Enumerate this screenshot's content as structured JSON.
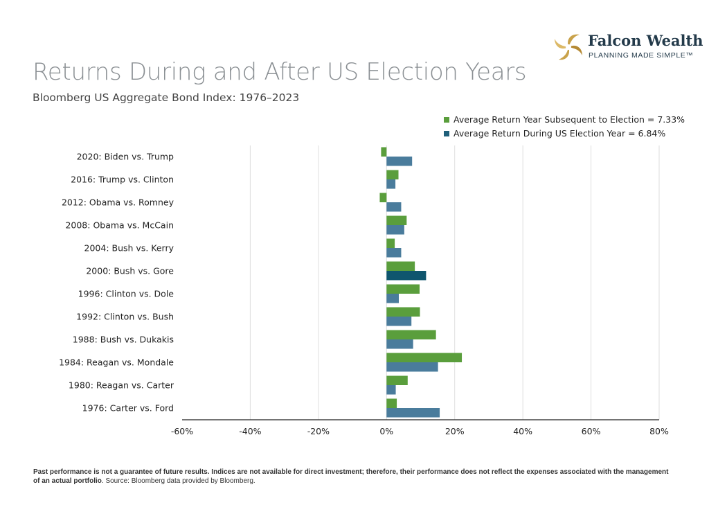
{
  "header": {
    "title": "Returns During and After US Election Years",
    "subtitle": "Bloomberg US Aggregate Bond Index: 1976–2023"
  },
  "logo": {
    "name": "Falcon Wealth",
    "tagline": "PLANNING MADE SIMPLE™",
    "icon": "golden-swirl-icon"
  },
  "footnote": {
    "bold": "Past performance is not a guarantee of future results. Indices are not available for direct investment; therefore, their performance does not reflect the expenses associated with the management of an actual portfolio",
    "normal": ". Source: Bloomberg data provided by Bloomberg."
  },
  "chart_data": {
    "type": "bar",
    "orientation": "horizontal",
    "categories": [
      "2020: Biden vs. Trump",
      "2016: Trump vs. Clinton",
      "2012: Obama vs. Romney",
      "2008: Obama vs. McCain",
      "2004: Bush vs. Kerry",
      "2000: Bush vs. Gore",
      "1996: Clinton vs. Dole",
      "1992: Clinton vs. Bush",
      "1988: Bush vs. Dukakis",
      "1984: Reagan vs. Mondale",
      "1980: Reagan vs. Carter",
      "1976: Carter vs. Ford"
    ],
    "series": [
      {
        "name": "Average Return Year Subsequent to Election = 7.33%",
        "color": "#5a9e3c",
        "values": [
          -1.6,
          3.5,
          -2.0,
          5.9,
          2.4,
          8.3,
          9.7,
          9.8,
          14.5,
          22.1,
          6.2,
          3.0
        ]
      },
      {
        "name": "Average Return During US Election Year = 6.84%",
        "color": "#4a7c9c",
        "highlight_color": "#0f566e",
        "highlight_category": "2000: Bush vs. Gore",
        "values": [
          7.5,
          2.6,
          4.3,
          5.2,
          4.3,
          11.6,
          3.6,
          7.3,
          7.8,
          15.1,
          2.7,
          15.6
        ]
      }
    ],
    "xlim": [
      -60,
      80
    ],
    "xticks": [
      -60,
      -40,
      -20,
      0,
      20,
      40,
      60,
      80
    ],
    "xtick_labels": [
      "-60%",
      "-40%",
      "-20%",
      "0%",
      "20%",
      "40%",
      "60%",
      "80%"
    ],
    "grid": "vertical",
    "legend": "top-right"
  }
}
